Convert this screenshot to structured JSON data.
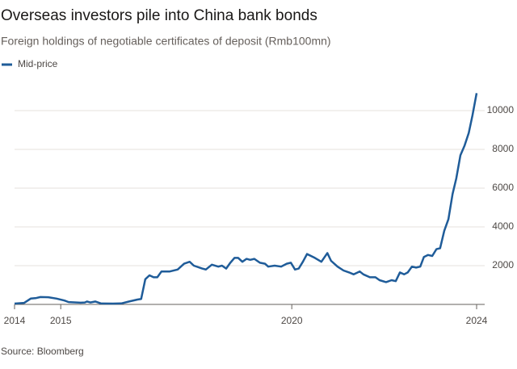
{
  "chart_data": {
    "type": "line",
    "title": "Overseas investors pile into China bank bonds",
    "subtitle": "Foreign holdings of negotiable certificates of deposit (Rmb100mn)",
    "source": "Source: Bloomberg",
    "x": [
      2014.0,
      2014.21,
      2014.35,
      2014.47,
      2014.56,
      2014.73,
      2014.91,
      2015.08,
      2015.17,
      2015.43,
      2015.52,
      2015.57,
      2015.64,
      2015.75,
      2015.87,
      2016.13,
      2016.31,
      2016.48,
      2016.66,
      2016.74,
      2016.83,
      2016.92,
      2017.01,
      2017.09,
      2017.18,
      2017.36,
      2017.53,
      2017.67,
      2017.79,
      2017.88,
      2018.06,
      2018.14,
      2018.27,
      2018.41,
      2018.49,
      2018.58,
      2018.67,
      2018.76,
      2018.84,
      2018.93,
      2019.02,
      2019.1,
      2019.19,
      2019.31,
      2019.42,
      2019.49,
      2019.63,
      2019.77,
      2019.89,
      2019.98,
      2020.07,
      2020.15,
      2020.24,
      2020.33,
      2020.5,
      2020.64,
      2020.77,
      2020.85,
      2020.99,
      2021.12,
      2021.24,
      2021.34,
      2021.47,
      2021.55,
      2021.69,
      2021.81,
      2021.9,
      2022.04,
      2022.16,
      2022.25,
      2022.34,
      2022.43,
      2022.51,
      2022.6,
      2022.69,
      2022.78,
      2022.86,
      2022.95,
      2023.04,
      2023.13,
      2023.21,
      2023.3,
      2023.39,
      2023.48,
      2023.56,
      2023.65,
      2023.74,
      2023.83,
      2023.91,
      2024.0
    ],
    "series": [
      {
        "name": "Mid-price",
        "color": "#1f5c99",
        "values": [
          40,
          80,
          300,
          330,
          380,
          370,
          300,
          200,
          120,
          90,
          100,
          150,
          100,
          150,
          50,
          40,
          50,
          150,
          250,
          280,
          1300,
          1500,
          1400,
          1400,
          1700,
          1700,
          1800,
          2100,
          2200,
          2000,
          1850,
          1800,
          2050,
          1950,
          2000,
          1850,
          2150,
          2400,
          2400,
          2200,
          2350,
          2300,
          2350,
          2150,
          2100,
          1950,
          2000,
          1950,
          2100,
          2150,
          1800,
          1850,
          2200,
          2600,
          2400,
          2200,
          2650,
          2250,
          1950,
          1750,
          1650,
          1550,
          1700,
          1550,
          1400,
          1400,
          1250,
          1150,
          1250,
          1200,
          1650,
          1550,
          1650,
          1950,
          1900,
          1950,
          2450,
          2550,
          2500,
          2850,
          2900,
          3800,
          4400,
          5700,
          6500,
          7700,
          8200,
          8850,
          9750,
          10900
        ]
      }
    ],
    "xlim": [
      2014,
      2024
    ],
    "xticks": [
      2014,
      2015,
      2020,
      2024
    ],
    "ylim": [
      0,
      11000
    ],
    "yticks": [
      2000,
      4000,
      6000,
      8000,
      10000
    ],
    "grid": true
  }
}
